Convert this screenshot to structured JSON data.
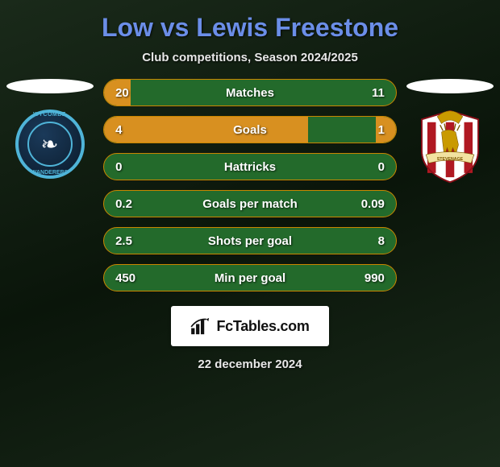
{
  "title": "Low vs Lewis Freestone",
  "subtitle": "Club competitions, Season 2024/2025",
  "date_text": "22 december 2024",
  "brand_text": "FcTables.com",
  "colors": {
    "title": "#6b8ee8",
    "bar_bg": "#236a2b",
    "bar_fill": "#d89020",
    "bar_border": "#c98600",
    "text": "#ffffff"
  },
  "stats": [
    {
      "label": "Matches",
      "left_val": "20",
      "right_val": "11",
      "left_pct": 9,
      "right_pct": 0
    },
    {
      "label": "Goals",
      "left_val": "4",
      "right_val": "1",
      "left_pct": 70,
      "right_pct": 7
    },
    {
      "label": "Hattricks",
      "left_val": "0",
      "right_val": "0",
      "left_pct": 0,
      "right_pct": 0
    },
    {
      "label": "Goals per match",
      "left_val": "0.2",
      "right_val": "0.09",
      "left_pct": 0,
      "right_pct": 0
    },
    {
      "label": "Shots per goal",
      "left_val": "2.5",
      "right_val": "8",
      "left_pct": 0,
      "right_pct": 0
    },
    {
      "label": "Min per goal",
      "left_val": "450",
      "right_val": "990",
      "left_pct": 0,
      "right_pct": 0
    }
  ],
  "crest_left": {
    "top": "WYCOMBE",
    "bottom": "WANDERERS"
  }
}
